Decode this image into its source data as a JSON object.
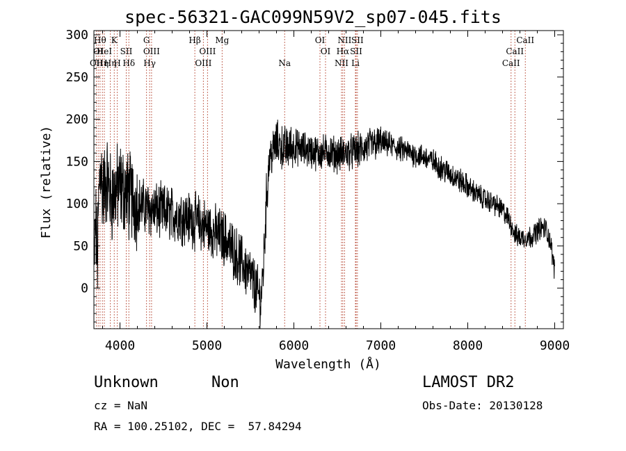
{
  "chart_data": {
    "type": "line",
    "title": "spec-56321-GAC099N59V2_sp07-045.fits",
    "xlabel": "Wavelength (Å)",
    "ylabel": "Flux (relative)",
    "xlim": [
      3700,
      9100
    ],
    "ylim": [
      -48,
      305
    ],
    "xticks": [
      4000,
      5000,
      6000,
      7000,
      8000,
      9000
    ],
    "yticks": [
      0,
      50,
      100,
      150,
      200,
      250,
      300
    ],
    "grid": false,
    "series": [
      {
        "color": "#000000",
        "anchors": [
          [
            3700,
            20
          ],
          [
            3720,
            80
          ],
          [
            3740,
            30
          ],
          [
            3760,
            120
          ],
          [
            3780,
            150
          ],
          [
            3800,
            110
          ],
          [
            3850,
            130
          ],
          [
            3900,
            105
          ],
          [
            3950,
            115
          ],
          [
            4000,
            120
          ],
          [
            4050,
            115
          ],
          [
            4100,
            110
          ],
          [
            4200,
            100
          ],
          [
            4300,
            95
          ],
          [
            4400,
            92
          ],
          [
            4500,
            90
          ],
          [
            4600,
            88
          ],
          [
            4700,
            86
          ],
          [
            4800,
            82
          ],
          [
            4900,
            78
          ],
          [
            5000,
            72
          ],
          [
            5100,
            65
          ],
          [
            5200,
            60
          ],
          [
            5300,
            45
          ],
          [
            5400,
            30
          ],
          [
            5500,
            15
          ],
          [
            5560,
            0
          ],
          [
            5620,
            -15
          ],
          [
            5650,
            25
          ],
          [
            5680,
            95
          ],
          [
            5700,
            130
          ],
          [
            5720,
            155
          ],
          [
            5750,
            160
          ],
          [
            5800,
            172
          ],
          [
            5850,
            168
          ],
          [
            5900,
            165
          ],
          [
            6000,
            168
          ],
          [
            6100,
            165
          ],
          [
            6200,
            162
          ],
          [
            6300,
            160
          ],
          [
            6400,
            162
          ],
          [
            6500,
            158
          ],
          [
            6600,
            160
          ],
          [
            6700,
            162
          ],
          [
            6800,
            165
          ],
          [
            6900,
            170
          ],
          [
            7000,
            172
          ],
          [
            7100,
            170
          ],
          [
            7200,
            165
          ],
          [
            7300,
            162
          ],
          [
            7400,
            158
          ],
          [
            7500,
            155
          ],
          [
            7600,
            150
          ],
          [
            7700,
            142
          ],
          [
            7800,
            135
          ],
          [
            7900,
            128
          ],
          [
            8000,
            120
          ],
          [
            8100,
            112
          ],
          [
            8200,
            105
          ],
          [
            8300,
            100
          ],
          [
            8400,
            92
          ],
          [
            8450,
            85
          ],
          [
            8500,
            75
          ],
          [
            8550,
            62
          ],
          [
            8600,
            60
          ],
          [
            8650,
            60
          ],
          [
            8700,
            60
          ],
          [
            8750,
            62
          ],
          [
            8800,
            68
          ],
          [
            8850,
            72
          ],
          [
            8900,
            70
          ],
          [
            8950,
            55
          ],
          [
            9000,
            20
          ]
        ]
      }
    ],
    "lines": [
      {
        "x": 3729,
        "row": 3,
        "label": "OII"
      },
      {
        "x": 3750,
        "row": 2,
        "label": "OI"
      },
      {
        "x": 3771,
        "row": 1,
        "label": "Hθ"
      },
      {
        "x": 3798,
        "row": 3,
        "label": "Hη"
      },
      {
        "x": 3820,
        "row": 2,
        "label": "HeI"
      },
      {
        "x": 3889,
        "row": 3,
        "label": "Hη"
      },
      {
        "x": 3934,
        "row": 1,
        "label": "K"
      },
      {
        "x": 3969,
        "row": 3,
        "label": "H"
      },
      {
        "x": 4072,
        "row": 2,
        "label": "SII"
      },
      {
        "x": 4102,
        "row": 3,
        "label": "Hδ"
      },
      {
        "x": 4305,
        "row": 1,
        "label": "G"
      },
      {
        "x": 4341,
        "row": 3,
        "label": "Hγ"
      },
      {
        "x": 4363,
        "row": 2,
        "label": "OIII"
      },
      {
        "x": 4861,
        "row": 1,
        "label": "Hβ"
      },
      {
        "x": 4959,
        "row": 3,
        "label": "OIII"
      },
      {
        "x": 5007,
        "row": 2,
        "label": "OIII"
      },
      {
        "x": 5175,
        "row": 1,
        "label": "Mg"
      },
      {
        "x": 5894,
        "row": 3,
        "label": "Na"
      },
      {
        "x": 6300,
        "row": 1,
        "label": "OI"
      },
      {
        "x": 6364,
        "row": 2,
        "label": "OI"
      },
      {
        "x": 6548,
        "row": 3,
        "label": "NII"
      },
      {
        "x": 6563,
        "row": 2,
        "label": "Hα"
      },
      {
        "x": 6583,
        "row": 1,
        "label": "NII"
      },
      {
        "x": 6708,
        "row": 3,
        "label": "Li"
      },
      {
        "x": 6716,
        "row": 2,
        "label": "SII"
      },
      {
        "x": 6731,
        "row": 1,
        "label": "SII"
      },
      {
        "x": 8498,
        "row": 3,
        "label": "CaII"
      },
      {
        "x": 8542,
        "row": 2,
        "label": "CaII"
      },
      {
        "x": 8662,
        "row": 1,
        "label": "CaII"
      }
    ]
  },
  "footer": {
    "object_class": "Unknown",
    "subclass": "Non",
    "survey": "LAMOST DR2",
    "cz": "cz = NaN",
    "obs_date": "Obs-Date: 20130128",
    "coords": "RA = 100.25102, DEC =  57.84294"
  }
}
